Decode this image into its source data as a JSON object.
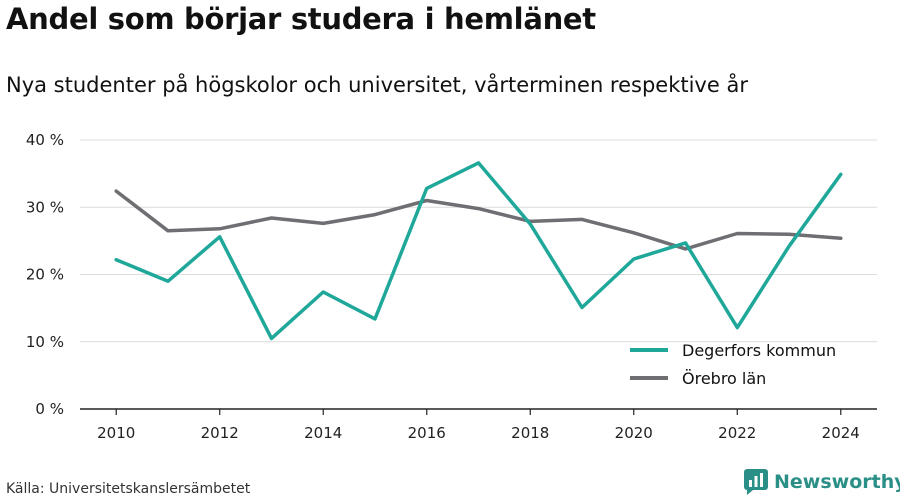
{
  "title": "Andel som börjar studera i hemlänet",
  "subtitle": "Nya studenter på högskolor och universitet, vårterminen respektive år",
  "source": "Källa: Universitetskanslersämbetet",
  "brand": "Newsworthy",
  "chart_data": {
    "type": "line",
    "x": [
      2010,
      2011,
      2012,
      2013,
      2014,
      2015,
      2016,
      2017,
      2018,
      2019,
      2020,
      2021,
      2022,
      2023,
      2024
    ],
    "x_ticks": [
      2010,
      2012,
      2014,
      2016,
      2018,
      2020,
      2022,
      2024
    ],
    "y_ticks": [
      0,
      10,
      20,
      30,
      40
    ],
    "y_tick_labels": [
      "0 %",
      "10 %",
      "20 %",
      "30 %",
      "40 %"
    ],
    "ylim": [
      0,
      40
    ],
    "xlim": [
      2009.3,
      2024.7
    ],
    "grid": true,
    "legend_position": "bottom-right",
    "series": [
      {
        "name": "Degerfors kommun",
        "color": "#1fa89a",
        "values": [
          22.2,
          19.0,
          25.6,
          10.5,
          17.4,
          13.4,
          32.8,
          36.6,
          27.5,
          15.1,
          22.3,
          24.7,
          12.1,
          24.2,
          34.9
        ]
      },
      {
        "name": "Örebro län",
        "color": "#6e6e73",
        "values": [
          32.4,
          26.5,
          26.8,
          28.4,
          27.6,
          28.9,
          31.0,
          29.8,
          27.9,
          28.2,
          26.2,
          23.8,
          26.1,
          26.0,
          25.4
        ]
      }
    ]
  }
}
